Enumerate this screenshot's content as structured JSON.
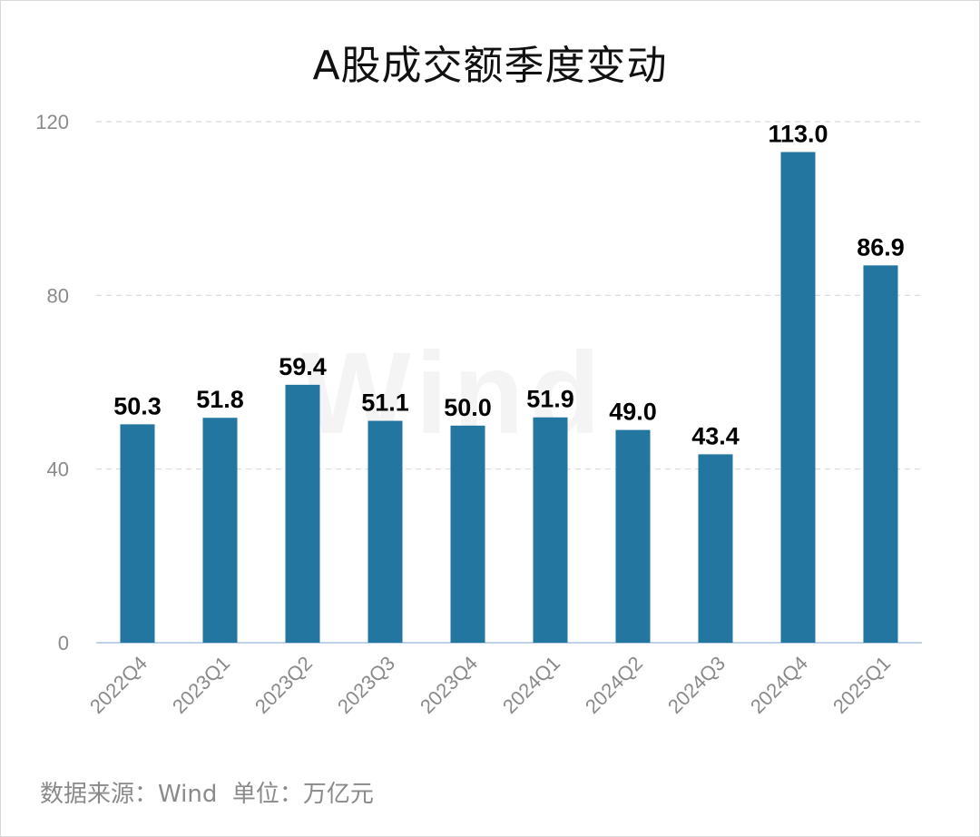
{
  "title": "A股成交额季度变动",
  "footer": {
    "source_label": "数据来源：",
    "source_value": "Wind",
    "unit_label": "单位：",
    "unit_value": "万亿元"
  },
  "watermark": "Wind",
  "colors": {
    "bar": "#23769f",
    "grid": "#d9d9d9",
    "axis": "#a9c4e0",
    "tick": "#8a8a8a",
    "label": "#000000"
  },
  "chart_data": {
    "type": "bar",
    "title": "A股成交额季度变动",
    "categories": [
      "2022Q4",
      "2023Q1",
      "2023Q2",
      "2023Q3",
      "2023Q4",
      "2024Q1",
      "2024Q2",
      "2024Q3",
      "2024Q4",
      "2025Q1"
    ],
    "values": [
      50.3,
      51.8,
      59.4,
      51.1,
      50.0,
      51.9,
      49.0,
      43.4,
      113.0,
      86.9
    ],
    "value_labels": [
      "50.3",
      "51.8",
      "59.4",
      "51.1",
      "50.0",
      "51.9",
      "49.0",
      "43.4",
      "113.0",
      "86.9"
    ],
    "y_ticks": [
      0,
      40,
      80,
      120
    ],
    "ylim": [
      0,
      120
    ],
    "xlabel": "",
    "ylabel": "",
    "grid": true,
    "legend": "none"
  }
}
